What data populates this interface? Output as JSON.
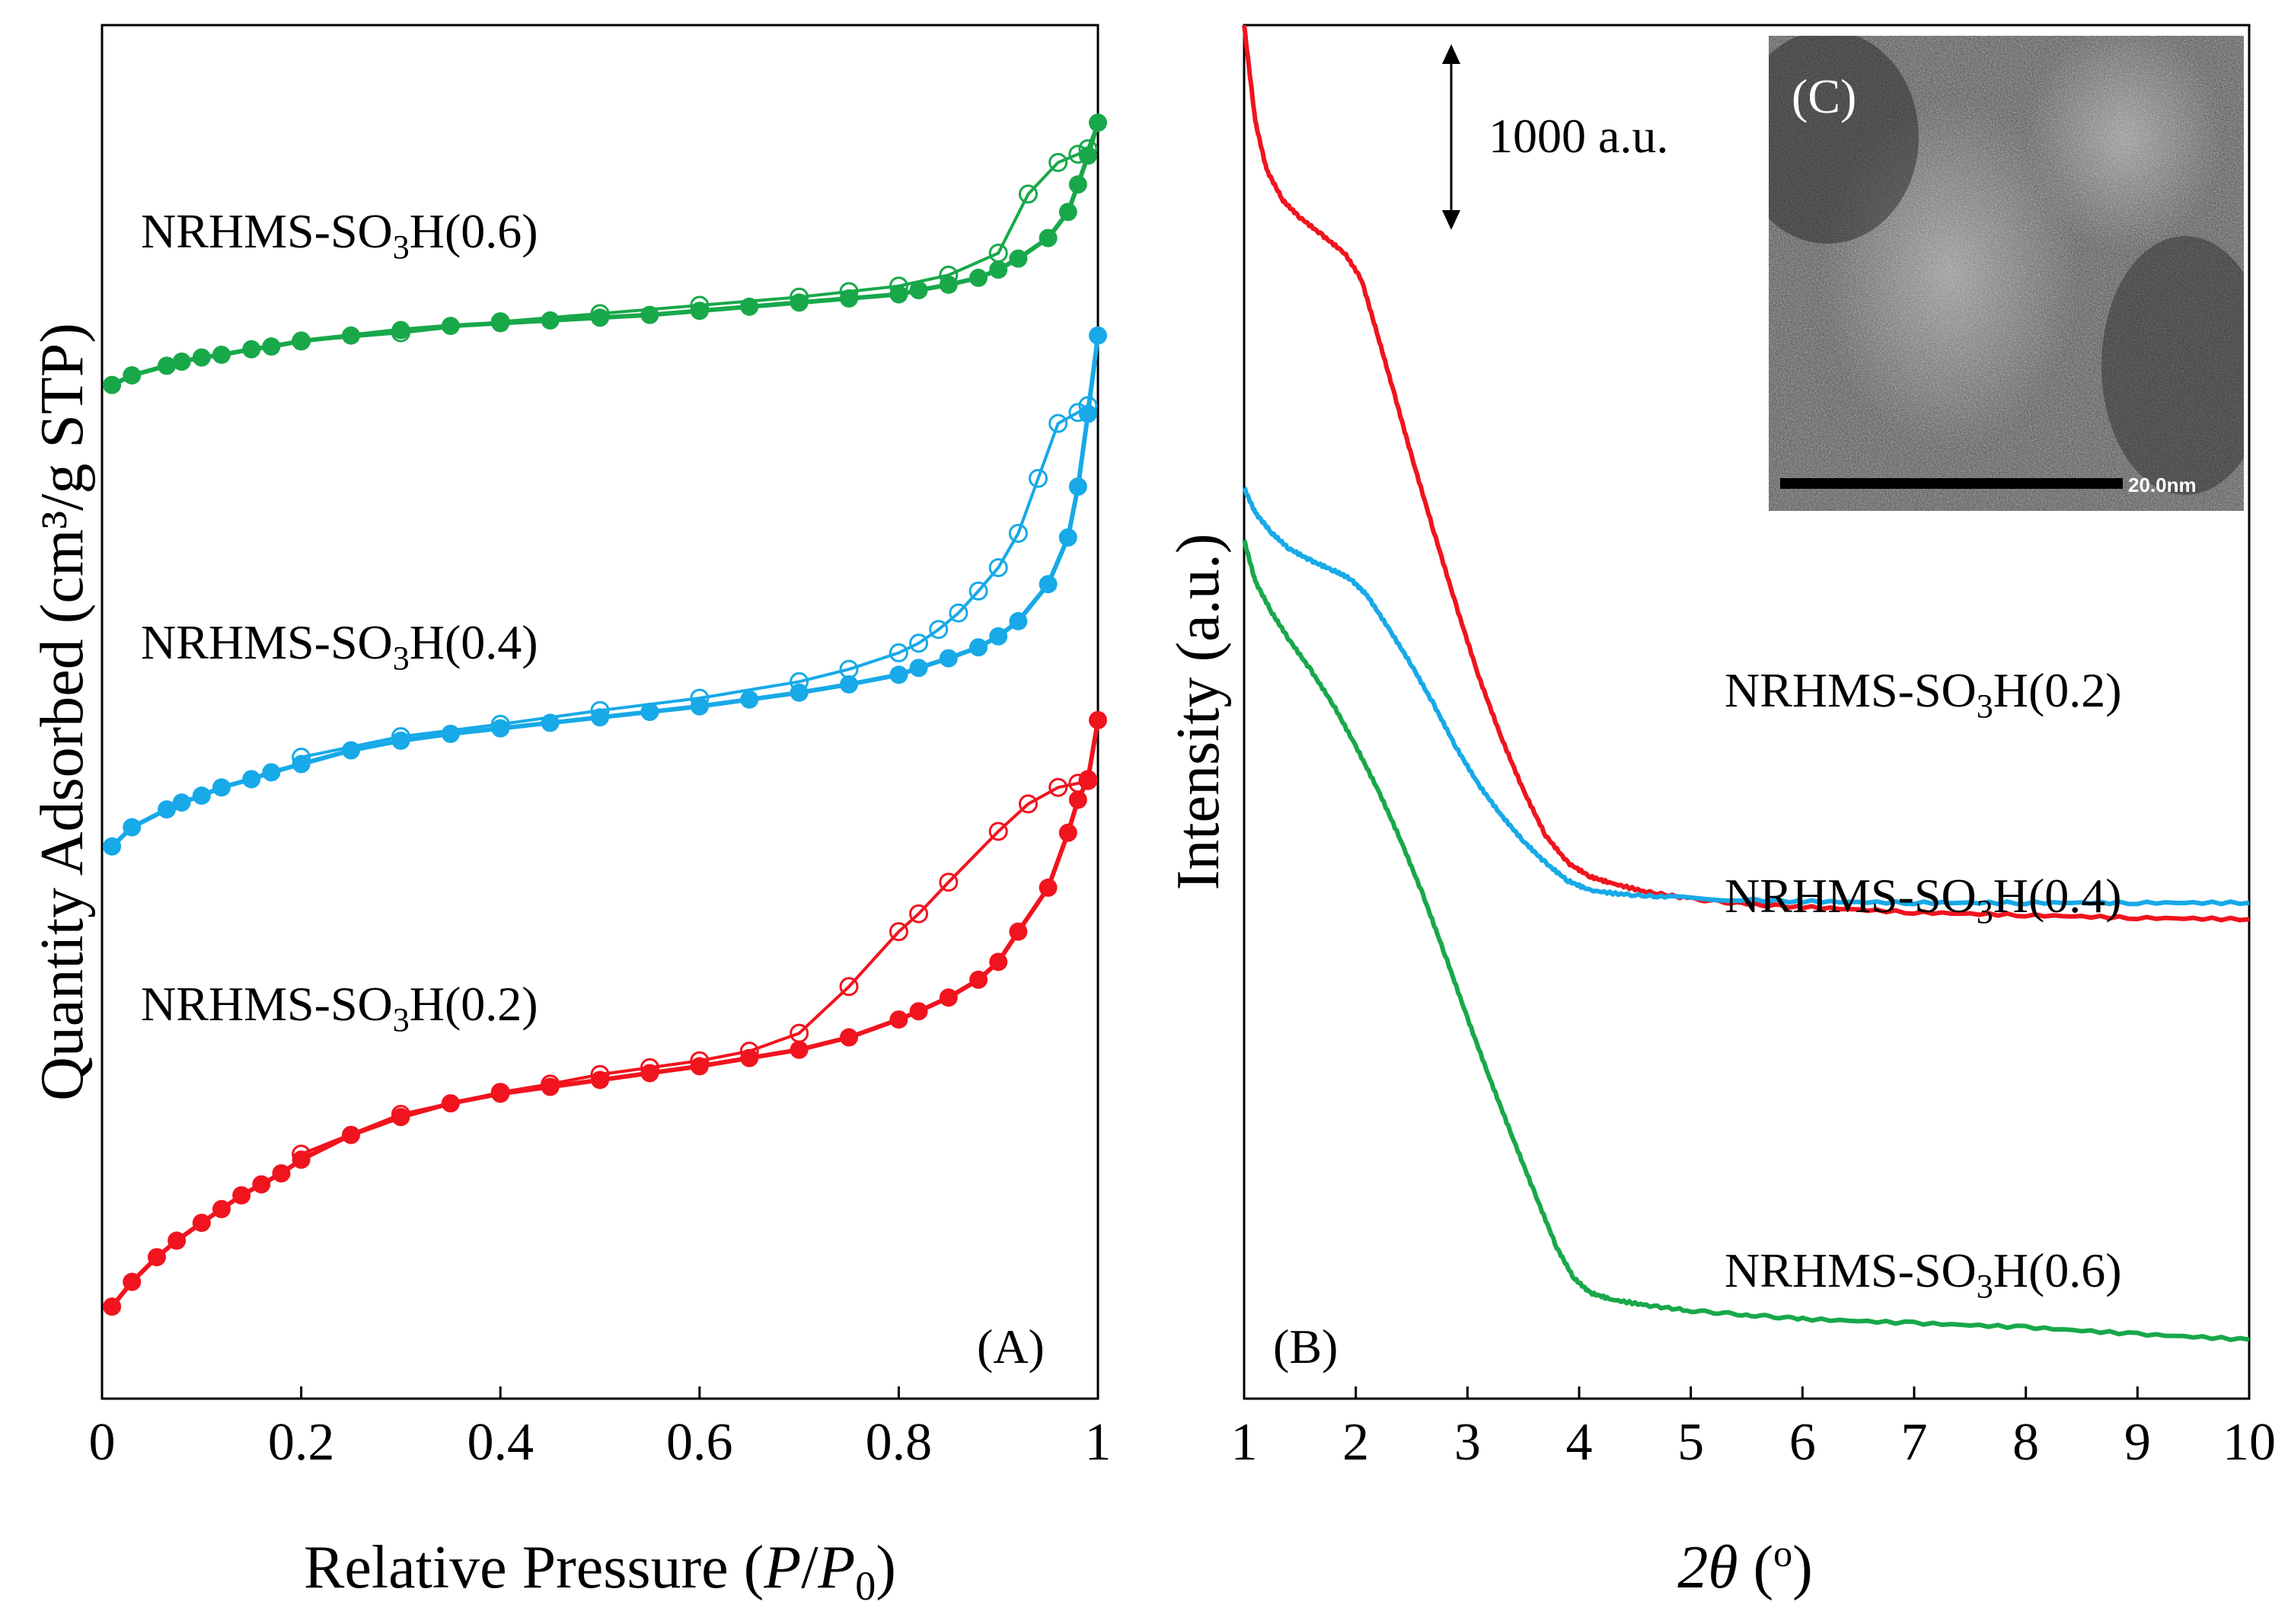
{
  "chart_data": [
    {
      "type": "line",
      "panel": "(A)",
      "title": "",
      "xlabel": "Relative Pressure (P/P0)",
      "xlabel_parts": {
        "pre": "Relative Pressure (",
        "p": "P",
        "slash": "/",
        "p0": "P",
        "sub": "0",
        "post": ")"
      },
      "ylabel": "Quantity Adsorbed (cm³/g STP)",
      "xlim": [
        0,
        1
      ],
      "ylim": [
        0,
        1000
      ],
      "xticks": [
        0,
        0.2,
        0.4,
        0.6,
        0.8,
        1
      ],
      "xtick_labels": [
        "0",
        "0.2",
        "0.4",
        "0.6",
        "0.8",
        "1"
      ],
      "grid": false,
      "series": [
        {
          "name": "NRHMS-SO3H(0.6)",
          "color": "#18a84a",
          "label_parts": {
            "pre": "NRHMS-SO",
            "sub": "3",
            "post": "H(0.6)"
          },
          "adsorption_x": [
            0.01,
            0.03,
            0.065,
            0.08,
            0.1,
            0.12,
            0.15,
            0.17,
            0.2,
            0.25,
            0.3,
            0.35,
            0.4,
            0.45,
            0.5,
            0.55,
            0.6,
            0.65,
            0.7,
            0.75,
            0.8,
            0.82,
            0.85,
            0.88,
            0.9,
            0.92,
            0.95,
            0.97,
            0.98,
            0.99,
            1.0
          ],
          "adsorption_y": [
            738,
            745,
            752,
            755,
            758,
            760,
            764,
            766,
            770,
            774,
            778,
            781,
            783,
            785,
            787,
            789,
            792,
            795,
            798,
            801,
            804,
            807,
            811,
            816,
            822,
            830,
            845,
            864,
            884,
            905,
            929
          ],
          "desorption_x": [
            0.99,
            0.98,
            0.96,
            0.93,
            0.9,
            0.85,
            0.8,
            0.75,
            0.7,
            0.6,
            0.5,
            0.4,
            0.3,
            0.2
          ],
          "desorption_y": [
            910,
            906,
            900,
            877,
            834,
            818,
            810,
            806,
            802,
            796,
            790,
            784,
            776,
            770
          ]
        },
        {
          "name": "NRHMS-SO3H(0.4)",
          "color": "#17a9e8",
          "label_parts": {
            "pre": "NRHMS-SO",
            "sub": "3",
            "post": "H(0.4)"
          },
          "adsorption_x": [
            0.01,
            0.03,
            0.065,
            0.08,
            0.1,
            0.12,
            0.15,
            0.17,
            0.2,
            0.25,
            0.3,
            0.35,
            0.4,
            0.45,
            0.5,
            0.55,
            0.6,
            0.65,
            0.7,
            0.75,
            0.8,
            0.82,
            0.85,
            0.88,
            0.9,
            0.92,
            0.95,
            0.97,
            0.98,
            0.99,
            1.0
          ],
          "adsorption_y": [
            402,
            416,
            429,
            434,
            439,
            445,
            451,
            456,
            462,
            472,
            479,
            484,
            488,
            492,
            496,
            500,
            504,
            509,
            514,
            520,
            527,
            532,
            539,
            547,
            555,
            566,
            593,
            627,
            664,
            717,
            774
          ],
          "desorption_x": [
            0.99,
            0.98,
            0.96,
            0.94,
            0.92,
            0.9,
            0.88,
            0.86,
            0.84,
            0.82,
            0.8,
            0.75,
            0.7,
            0.6,
            0.5,
            0.4,
            0.3,
            0.2
          ],
          "desorption_y": [
            723,
            718,
            710,
            670,
            630,
            605,
            588,
            572,
            560,
            550,
            543,
            531,
            522,
            510,
            501,
            491,
            482,
            467
          ]
        },
        {
          "name": "NRHMS-SO3H(0.2)",
          "color": "#f0141e",
          "label_parts": {
            "pre": "NRHMS-SO",
            "sub": "3",
            "post": "H(0.2)"
          },
          "adsorption_x": [
            0.01,
            0.03,
            0.055,
            0.075,
            0.1,
            0.12,
            0.14,
            0.16,
            0.18,
            0.2,
            0.25,
            0.3,
            0.35,
            0.4,
            0.45,
            0.5,
            0.55,
            0.6,
            0.65,
            0.7,
            0.75,
            0.8,
            0.82,
            0.85,
            0.88,
            0.9,
            0.92,
            0.95,
            0.97,
            0.98,
            0.99,
            1.0
          ],
          "adsorption_y": [
            67,
            85,
            103,
            115,
            128,
            138,
            148,
            156,
            164,
            174,
            192,
            205,
            215,
            222,
            227,
            232,
            237,
            242,
            248,
            254,
            263,
            276,
            282,
            292,
            305,
            318,
            340,
            372,
            412,
            436,
            451,
            494
          ],
          "desorption_x": [
            0.99,
            0.98,
            0.96,
            0.93,
            0.9,
            0.85,
            0.82,
            0.8,
            0.75,
            0.7,
            0.65,
            0.6,
            0.55,
            0.5,
            0.45,
            0.4,
            0.3,
            0.2
          ],
          "desorption_y": [
            450,
            448,
            445,
            433,
            413,
            376,
            353,
            340,
            300,
            266,
            253,
            246,
            241,
            236,
            229,
            223,
            207,
            178
          ]
        }
      ]
    },
    {
      "type": "line",
      "panel": "(B)",
      "title": "",
      "xlabel": "2θ (o)",
      "xlabel_parts": {
        "two": "2",
        "theta": "θ",
        "open": " (",
        "deg": "o",
        "close": ")"
      },
      "ylabel": "Intensity (a.u.)",
      "xlim": [
        1,
        10
      ],
      "ylim": [
        0,
        1000
      ],
      "xticks": [
        1,
        2,
        3,
        4,
        5,
        6,
        7,
        8,
        9,
        10
      ],
      "xtick_labels": [
        "1",
        "2",
        "3",
        "4",
        "5",
        "6",
        "7",
        "8",
        "9",
        "10"
      ],
      "grid": false,
      "scale_bar_label": "1000 a.u.",
      "series": [
        {
          "name": "NRHMS-SO3H(0.2)",
          "color": "#f0141e",
          "label_parts": {
            "pre": "NRHMS-SO",
            "sub": "3",
            "post": "H(0.2)"
          },
          "x": [
            1.0,
            1.1,
            1.2,
            1.35,
            1.5,
            1.7,
            1.9,
            2.05,
            2.2,
            2.35,
            2.5,
            2.7,
            2.9,
            3.1,
            3.3,
            3.5,
            3.7,
            3.9,
            4.1,
            4.3,
            4.6,
            5.0,
            5.5,
            6.0,
            7.0,
            8.0,
            9.0,
            10.0
          ],
          "y": [
            1000,
            930,
            895,
            872,
            860,
            847,
            834,
            815,
            773,
            730,
            686,
            631,
            577,
            526,
            482,
            443,
            410,
            390,
            380,
            375,
            369,
            364,
            360,
            358,
            354,
            352,
            350,
            349
          ]
        },
        {
          "name": "NRHMS-SO3H(0.4)",
          "color": "#17a9e8",
          "label_parts": {
            "pre": "NRHMS-SO",
            "sub": "3",
            "post": "H(0.4)"
          },
          "x": [
            1.0,
            1.1,
            1.25,
            1.4,
            1.6,
            1.8,
            1.95,
            2.1,
            2.3,
            2.5,
            2.7,
            2.9,
            3.1,
            3.3,
            3.5,
            3.7,
            3.9,
            4.1,
            4.4,
            4.8,
            5.5,
            6.0,
            7.0,
            8.0,
            9.0,
            10.0
          ],
          "y": [
            663,
            645,
            630,
            619,
            610,
            603,
            597,
            585,
            560,
            534,
            505,
            474,
            447,
            425,
            406,
            390,
            377,
            370,
            367,
            365,
            363,
            362,
            361,
            361,
            361,
            361
          ]
        },
        {
          "name": "NRHMS-SO3H(0.6)",
          "color": "#18a84a",
          "label_parts": {
            "pre": "NRHMS-SO",
            "sub": "3",
            "post": "H(0.6)"
          },
          "x": [
            1.0,
            1.1,
            1.25,
            1.4,
            1.6,
            1.8,
            2.0,
            2.2,
            2.4,
            2.6,
            2.8,
            3.0,
            3.2,
            3.4,
            3.6,
            3.8,
            3.95,
            4.1,
            4.3,
            4.6,
            5.0,
            5.5,
            6.0,
            7.0,
            8.0,
            9.0,
            10.0
          ],
          "y": [
            625,
            595,
            572,
            553,
            530,
            505,
            475,
            443,
            407,
            367,
            323,
            277,
            233,
            191,
            150,
            110,
            88,
            77,
            72,
            68,
            64,
            61,
            58,
            55,
            52,
            47,
            43
          ]
        }
      ]
    },
    {
      "type": "image",
      "panel": "(C)",
      "description_label": "TEM micrograph",
      "scale_bar_label": "20.0nm"
    }
  ]
}
